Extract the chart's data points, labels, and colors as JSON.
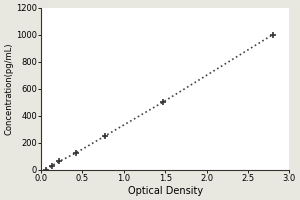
{
  "title": "",
  "xlabel": "Optical Density",
  "ylabel": "Concentration(pg/mL)",
  "x_data": [
    0.06,
    0.13,
    0.22,
    0.42,
    0.77,
    1.47,
    2.8
  ],
  "y_data": [
    0,
    31,
    63,
    125,
    250,
    500,
    1000
  ],
  "xlim": [
    0,
    3.0
  ],
  "ylim": [
    0,
    1200
  ],
  "xticks": [
    0,
    0.5,
    1,
    1.5,
    2,
    2.5,
    3
  ],
  "yticks": [
    0,
    200,
    400,
    600,
    800,
    1000,
    1200
  ],
  "line_color": "#444444",
  "marker_color": "#333333",
  "bg_color": "#e8e8e0",
  "plot_bg_color": "#ffffff",
  "line_style": "dotted",
  "marker_style": "+"
}
